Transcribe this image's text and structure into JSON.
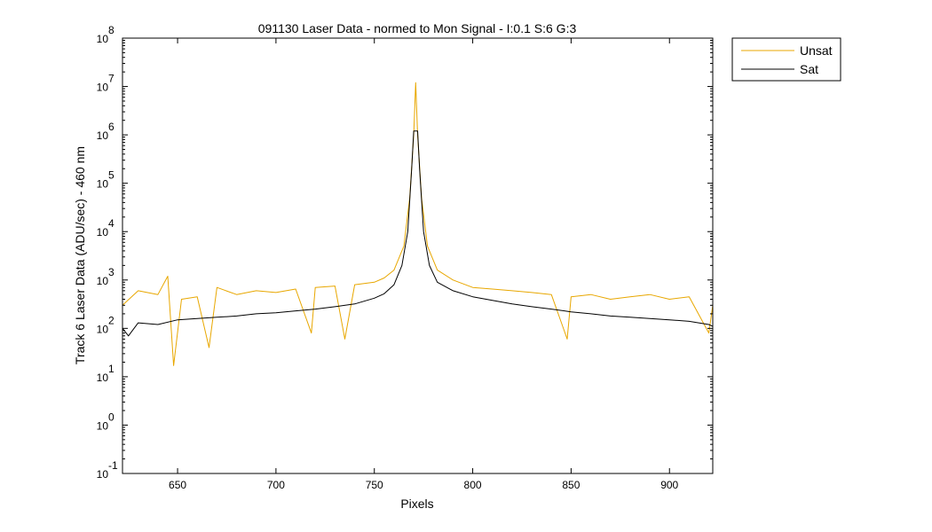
{
  "chart_data": {
    "type": "line",
    "title": "091130 Laser Data - normed to Mon Signal -   I:0.1  S:6  G:3",
    "xlabel": "Pixels",
    "ylabel": "Track 6 Laser Data (ADU/sec) - 460 nm",
    "xlim": [
      622,
      922
    ],
    "ylim": [
      0.1,
      100000000
    ],
    "yscale": "log",
    "grid": false,
    "legend_position": "outside-top-right",
    "x_ticks": [
      "650",
      "700",
      "750",
      "800",
      "850",
      "900"
    ],
    "y_ticks": [
      {
        "base": "10",
        "exp": "-1"
      },
      {
        "base": "10",
        "exp": "0"
      },
      {
        "base": "10",
        "exp": "1"
      },
      {
        "base": "10",
        "exp": "2"
      },
      {
        "base": "10",
        "exp": "3"
      },
      {
        "base": "10",
        "exp": "4"
      },
      {
        "base": "10",
        "exp": "5"
      },
      {
        "base": "10",
        "exp": "6"
      },
      {
        "base": "10",
        "exp": "7"
      },
      {
        "base": "10",
        "exp": "8"
      }
    ],
    "series": [
      {
        "name": "Unsat",
        "color": "#E8A700",
        "points": [
          [
            622,
            300
          ],
          [
            630,
            600
          ],
          [
            640,
            500
          ],
          [
            645,
            1200
          ],
          [
            648,
            17
          ],
          [
            652,
            400
          ],
          [
            660,
            450
          ],
          [
            666,
            40
          ],
          [
            670,
            700
          ],
          [
            680,
            500
          ],
          [
            690,
            600
          ],
          [
            700,
            550
          ],
          [
            710,
            650
          ],
          [
            718,
            80
          ],
          [
            720,
            700
          ],
          [
            730,
            750
          ],
          [
            735,
            60
          ],
          [
            740,
            800
          ],
          [
            750,
            900
          ],
          [
            755,
            1100
          ],
          [
            760,
            1600
          ],
          [
            765,
            5000
          ],
          [
            768,
            50000
          ],
          [
            770,
            1000000
          ],
          [
            771,
            12000000
          ],
          [
            772,
            1000000
          ],
          [
            774,
            50000
          ],
          [
            777,
            5000
          ],
          [
            782,
            1600
          ],
          [
            790,
            1000
          ],
          [
            800,
            700
          ],
          [
            810,
            650
          ],
          [
            820,
            600
          ],
          [
            830,
            550
          ],
          [
            840,
            500
          ],
          [
            848,
            60
          ],
          [
            850,
            450
          ],
          [
            860,
            500
          ],
          [
            870,
            400
          ],
          [
            880,
            450
          ],
          [
            890,
            500
          ],
          [
            900,
            400
          ],
          [
            910,
            450
          ],
          [
            920,
            80
          ],
          [
            922,
            300
          ]
        ]
      },
      {
        "name": "Sat",
        "color": "#000000",
        "points": [
          [
            622,
            100
          ],
          [
            625,
            70
          ],
          [
            630,
            130
          ],
          [
            640,
            120
          ],
          [
            650,
            150
          ],
          [
            660,
            160
          ],
          [
            670,
            170
          ],
          [
            680,
            180
          ],
          [
            690,
            200
          ],
          [
            700,
            210
          ],
          [
            710,
            230
          ],
          [
            720,
            250
          ],
          [
            730,
            280
          ],
          [
            740,
            320
          ],
          [
            750,
            420
          ],
          [
            755,
            520
          ],
          [
            760,
            800
          ],
          [
            764,
            2000
          ],
          [
            767,
            10000
          ],
          [
            769,
            200000
          ],
          [
            770,
            1200000
          ],
          [
            772,
            1200000
          ],
          [
            773,
            200000
          ],
          [
            775,
            10000
          ],
          [
            778,
            2000
          ],
          [
            782,
            900
          ],
          [
            790,
            600
          ],
          [
            800,
            450
          ],
          [
            810,
            380
          ],
          [
            820,
            320
          ],
          [
            830,
            280
          ],
          [
            840,
            250
          ],
          [
            850,
            220
          ],
          [
            860,
            200
          ],
          [
            870,
            180
          ],
          [
            880,
            170
          ],
          [
            890,
            160
          ],
          [
            900,
            150
          ],
          [
            910,
            140
          ],
          [
            920,
            120
          ],
          [
            922,
            110
          ]
        ]
      }
    ]
  }
}
